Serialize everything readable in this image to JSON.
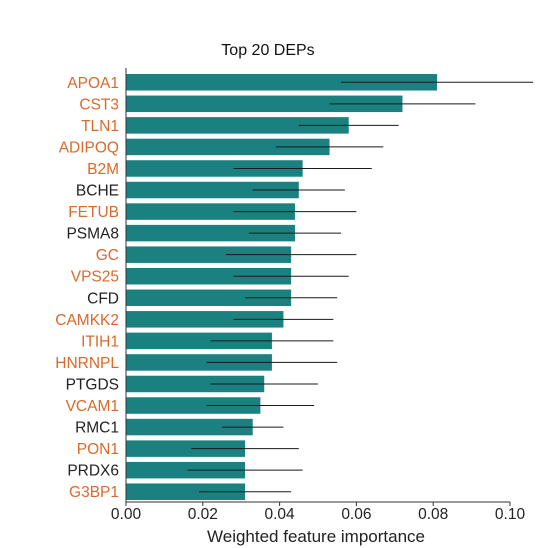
{
  "chart_data": {
    "type": "bar",
    "orientation": "horizontal",
    "title": "Top 20 DEPs",
    "xlabel": "Weighted feature importance",
    "ylabel": "",
    "xlim": [
      0,
      0.1
    ],
    "xticks": [
      "0.00",
      "0.02",
      "0.04",
      "0.06",
      "0.08",
      "0.10"
    ],
    "grid": false,
    "bar_color": "#1b8080",
    "highlight_label_color": "#d96a2b",
    "normal_label_color": "#222222",
    "categories": [
      "APOA1",
      "CST3",
      "TLN1",
      "ADIPOQ",
      "B2M",
      "BCHE",
      "FETUB",
      "PSMA8",
      "GC",
      "VPS25",
      "CFD",
      "CAMKK2",
      "ITIH1",
      "HNRNPL",
      "PTGDS",
      "VCAM1",
      "RMC1",
      "PON1",
      "PRDX6",
      "G3BP1"
    ],
    "highlighted": [
      true,
      true,
      true,
      true,
      true,
      false,
      true,
      false,
      true,
      true,
      false,
      true,
      true,
      true,
      false,
      true,
      false,
      true,
      false,
      true
    ],
    "values": [
      0.081,
      0.072,
      0.058,
      0.053,
      0.046,
      0.045,
      0.044,
      0.044,
      0.043,
      0.043,
      0.043,
      0.041,
      0.038,
      0.038,
      0.036,
      0.035,
      0.033,
      0.031,
      0.031,
      0.031
    ],
    "errors": [
      0.025,
      0.019,
      0.013,
      0.014,
      0.018,
      0.012,
      0.016,
      0.012,
      0.017,
      0.015,
      0.012,
      0.013,
      0.016,
      0.017,
      0.014,
      0.014,
      0.008,
      0.014,
      0.015,
      0.012
    ]
  }
}
